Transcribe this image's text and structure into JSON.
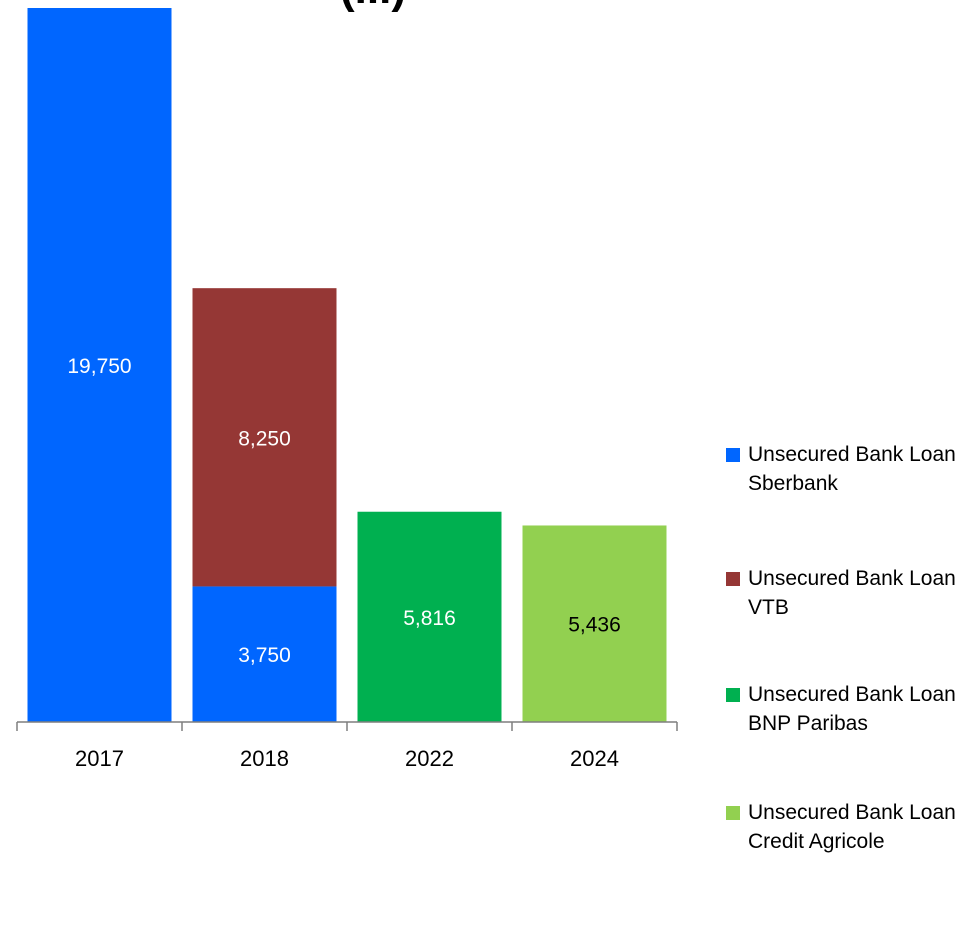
{
  "chart_data": {
    "type": "bar",
    "stacked": true,
    "categories": [
      "2017",
      "2018",
      "2022",
      "2024"
    ],
    "series": [
      {
        "name": "Unsecured Bank Loan Sberbank",
        "color": "#0066FF",
        "values": [
          19750,
          3750,
          null,
          null
        ],
        "labels": [
          "19,750",
          "3,750",
          "",
          ""
        ]
      },
      {
        "name": "Unsecured Bank Loan VTB",
        "color": "#953735",
        "values": [
          null,
          8250,
          null,
          null
        ],
        "labels": [
          "",
          "8,250",
          "",
          ""
        ]
      },
      {
        "name": "Unsecured Bank Loan BNP Paribas",
        "color": "#00B050",
        "values": [
          null,
          null,
          5816,
          null
        ],
        "labels": [
          "",
          "",
          "5,816",
          ""
        ]
      },
      {
        "name": "Unsecured Bank Loan Credit Agricole",
        "color": "#92D050",
        "values": [
          null,
          null,
          null,
          5436
        ],
        "labels": [
          "",
          "",
          "",
          "5,436"
        ]
      }
    ],
    "legend_position": "right",
    "grid": false,
    "title_fragment": "(...)"
  }
}
